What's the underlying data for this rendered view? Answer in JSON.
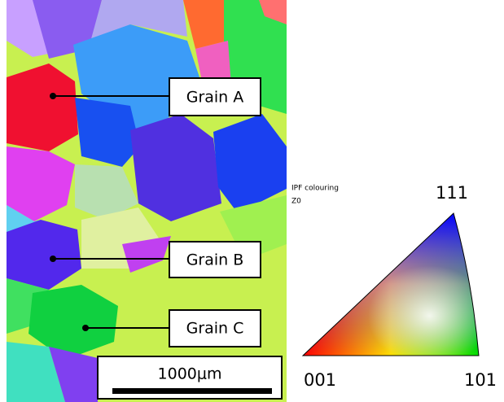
{
  "grain_labels": [
    "Grain A",
    "Grain B",
    "Grain C"
  ],
  "scale_bar": "1000μm",
  "legend": {
    "title": "IPF colouring",
    "axis": "Z0",
    "corners": {
      "top": "111",
      "left": "001",
      "right": "101"
    }
  }
}
